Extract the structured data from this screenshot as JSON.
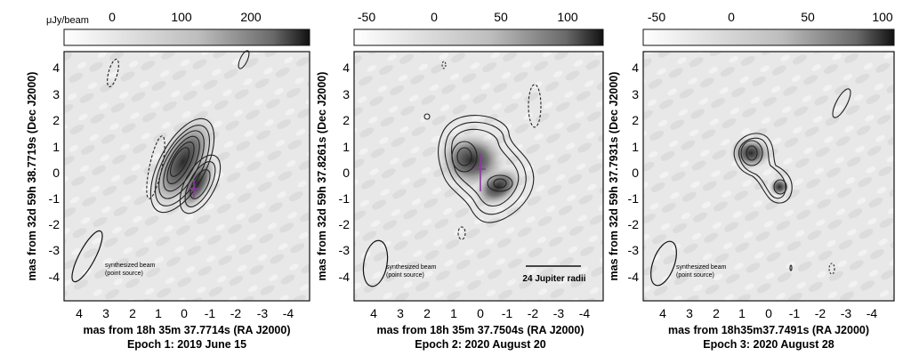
{
  "colorbar_unit": "μJy/beam",
  "scale_bar_label": "24 Jupiter radii",
  "beam_label_line1": "synthesized beam",
  "beam_label_line2": "(point source)",
  "x_ticks": [
    "4",
    "3",
    "2",
    "1",
    "0",
    "-1",
    "-2",
    "-3",
    "-4"
  ],
  "y_ticks": [
    "4",
    "3",
    "2",
    "1",
    "0",
    "-1",
    "-2",
    "-3",
    "-4"
  ],
  "panels": [
    {
      "id": "epoch1",
      "colorbar_ticks": [
        "0",
        "100",
        "200"
      ],
      "ylabel": "mas from  32d 59h 38.7719s  (Dec J2000)",
      "xlabel": "mas from 18h 35m 37.7714s  (RA J2000)",
      "epoch": "Epoch 1: 2019 June 15"
    },
    {
      "id": "epoch2",
      "colorbar_ticks": [
        "-50",
        "0",
        "50",
        "100"
      ],
      "ylabel": "mas from  32d 59h 37.8261s  (Dec J2000)",
      "xlabel": "mas from 18h 35m 37.7504s  (RA J2000)",
      "epoch": "Epoch 2: 2020 August 20"
    },
    {
      "id": "epoch3",
      "colorbar_ticks": [
        "-50",
        "0",
        "50",
        "100"
      ],
      "ylabel": "mas from  32d 59h 37.7931s  (Dec J2000)",
      "xlabel": "mas from  18h35m37.7491s  (RA J2000)",
      "epoch": "Epoch 3: 2020 August 28"
    }
  ],
  "colors": {
    "frame": "#111111",
    "contour": "#222222",
    "cross": "#8a3aa0",
    "map_bg": "#e9e9e9"
  }
}
